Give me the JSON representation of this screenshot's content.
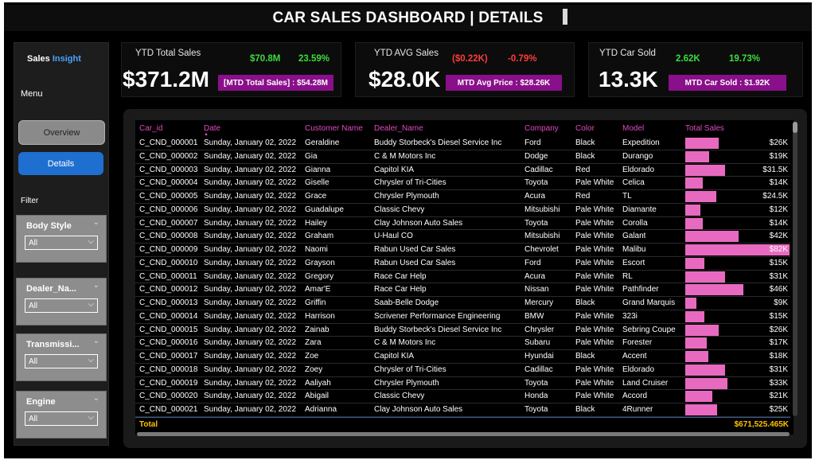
{
  "header": {
    "title": "CAR SALES DASHBOARD | DETAILS"
  },
  "sidebar": {
    "brand_prefix": "Sales",
    "brand_accent": "Insight",
    "menu_label": "Menu",
    "nav": {
      "overview": "Overview",
      "details": "Details"
    },
    "filter_label": "Filter",
    "slicers": [
      {
        "title": "Body Style",
        "value": "All"
      },
      {
        "title": "Dealer_Na...",
        "value": "All"
      },
      {
        "title": "Transmissi...",
        "value": "All"
      },
      {
        "title": "Engine",
        "value": "All"
      }
    ]
  },
  "cards": [
    {
      "label": "YTD Total Sales",
      "value": "$371.2M",
      "metric1": "$70.8M",
      "metric2": "23.59%",
      "metric1_color": "#3ddc3d",
      "metric2_color": "#3ddc3d",
      "mtd": "[MTD Total Sales] : $54.28M"
    },
    {
      "label": "YTD AVG Sales",
      "value": "$28.0K",
      "metric1": "($0.22K)",
      "metric2": "-0.79%",
      "metric1_color": "#ff3b3b",
      "metric2_color": "#ff3b3b",
      "mtd": "MTD Avg Price : $28.26K"
    },
    {
      "label": "YTD Car Sold",
      "value": "13.3K",
      "metric1": "2.62K",
      "metric2": "19.73%",
      "metric1_color": "#3ddc3d",
      "metric2_color": "#3ddc3d",
      "mtd": "MTD Car Sold : $1.92K"
    }
  ],
  "table": {
    "columns": [
      "Car_id",
      "Date",
      "Customer Name",
      "Dealer_Name",
      "Company",
      "Color",
      "Model",
      "Total Sales"
    ],
    "sort_indicator": "▲",
    "bar_color": "#e86ac0",
    "max_sales": 82,
    "rows": [
      {
        "car_id": "C_CND_000001",
        "date": "Sunday, January 02, 2022",
        "customer": "Geraldine",
        "dealer": "Buddy Storbeck's Diesel Service Inc",
        "company": "Ford",
        "color": "Black",
        "model": "Expedition",
        "total": "$26K",
        "value": 26
      },
      {
        "car_id": "C_CND_000002",
        "date": "Sunday, January 02, 2022",
        "customer": "Gia",
        "dealer": "C & M Motors Inc",
        "company": "Dodge",
        "color": "Black",
        "model": "Durango",
        "total": "$19K",
        "value": 19
      },
      {
        "car_id": "C_CND_000003",
        "date": "Sunday, January 02, 2022",
        "customer": "Gianna",
        "dealer": "Capitol KIA",
        "company": "Cadillac",
        "color": "Red",
        "model": "Eldorado",
        "total": "$31.5K",
        "value": 31.5
      },
      {
        "car_id": "C_CND_000004",
        "date": "Sunday, January 02, 2022",
        "customer": "Giselle",
        "dealer": "Chrysler of Tri-Cities",
        "company": "Toyota",
        "color": "Pale White",
        "model": "Celica",
        "total": "$14K",
        "value": 14
      },
      {
        "car_id": "C_CND_000005",
        "date": "Sunday, January 02, 2022",
        "customer": "Grace",
        "dealer": "Chrysler Plymouth",
        "company": "Acura",
        "color": "Red",
        "model": "TL",
        "total": "$24.5K",
        "value": 24.5
      },
      {
        "car_id": "C_CND_000006",
        "date": "Sunday, January 02, 2022",
        "customer": "Guadalupe",
        "dealer": "Classic Chevy",
        "company": "Mitsubishi",
        "color": "Pale White",
        "model": "Diamante",
        "total": "$12K",
        "value": 12
      },
      {
        "car_id": "C_CND_000007",
        "date": "Sunday, January 02, 2022",
        "customer": "Hailey",
        "dealer": "Clay Johnson Auto Sales",
        "company": "Toyota",
        "color": "Pale White",
        "model": "Corolla",
        "total": "$14K",
        "value": 14
      },
      {
        "car_id": "C_CND_000008",
        "date": "Sunday, January 02, 2022",
        "customer": "Graham",
        "dealer": "U-Haul CO",
        "company": "Mitsubishi",
        "color": "Pale White",
        "model": "Galant",
        "total": "$42K",
        "value": 42
      },
      {
        "car_id": "C_CND_000009",
        "date": "Sunday, January 02, 2022",
        "customer": "Naomi",
        "dealer": "Rabun Used Car Sales",
        "company": "Chevrolet",
        "color": "Pale White",
        "model": "Malibu",
        "total": "$82K",
        "value": 82
      },
      {
        "car_id": "C_CND_000010",
        "date": "Sunday, January 02, 2022",
        "customer": "Grayson",
        "dealer": "Rabun Used Car Sales",
        "company": "Ford",
        "color": "Pale White",
        "model": "Escort",
        "total": "$15K",
        "value": 15
      },
      {
        "car_id": "C_CND_000011",
        "date": "Sunday, January 02, 2022",
        "customer": "Gregory",
        "dealer": "Race Car Help",
        "company": "Acura",
        "color": "Pale White",
        "model": "RL",
        "total": "$31K",
        "value": 31
      },
      {
        "car_id": "C_CND_000012",
        "date": "Sunday, January 02, 2022",
        "customer": "Amar'E",
        "dealer": "Race Car Help",
        "company": "Nissan",
        "color": "Pale White",
        "model": "Pathfinder",
        "total": "$46K",
        "value": 46
      },
      {
        "car_id": "C_CND_000013",
        "date": "Sunday, January 02, 2022",
        "customer": "Griffin",
        "dealer": "Saab-Belle Dodge",
        "company": "Mercury",
        "color": "Black",
        "model": "Grand Marquis",
        "total": "$9K",
        "value": 9
      },
      {
        "car_id": "C_CND_000014",
        "date": "Sunday, January 02, 2022",
        "customer": "Harrison",
        "dealer": "Scrivener Performance Engineering",
        "company": "BMW",
        "color": "Pale White",
        "model": "323i",
        "total": "$15K",
        "value": 15
      },
      {
        "car_id": "C_CND_000015",
        "date": "Sunday, January 02, 2022",
        "customer": "Zainab",
        "dealer": "Buddy Storbeck's Diesel Service Inc",
        "company": "Chrysler",
        "color": "Pale White",
        "model": "Sebring Coupe",
        "total": "$26K",
        "value": 26
      },
      {
        "car_id": "C_CND_000016",
        "date": "Sunday, January 02, 2022",
        "customer": "Zara",
        "dealer": "C & M Motors Inc",
        "company": "Subaru",
        "color": "Pale White",
        "model": "Forester",
        "total": "$17K",
        "value": 17
      },
      {
        "car_id": "C_CND_000017",
        "date": "Sunday, January 02, 2022",
        "customer": "Zoe",
        "dealer": "Capitol KIA",
        "company": "Hyundai",
        "color": "Black",
        "model": "Accent",
        "total": "$18K",
        "value": 18
      },
      {
        "car_id": "C_CND_000018",
        "date": "Sunday, January 02, 2022",
        "customer": "Zoey",
        "dealer": "Chrysler of Tri-Cities",
        "company": "Cadillac",
        "color": "Pale White",
        "model": "Eldorado",
        "total": "$31K",
        "value": 31
      },
      {
        "car_id": "C_CND_000019",
        "date": "Sunday, January 02, 2022",
        "customer": "Aaliyah",
        "dealer": "Chrysler Plymouth",
        "company": "Toyota",
        "color": "Pale White",
        "model": "Land Cruiser",
        "total": "$33K",
        "value": 33
      },
      {
        "car_id": "C_CND_000020",
        "date": "Sunday, January 02, 2022",
        "customer": "Abigail",
        "dealer": "Classic Chevy",
        "company": "Honda",
        "color": "Pale White",
        "model": "Accord",
        "total": "$21K",
        "value": 21
      },
      {
        "car_id": "C_CND_000021",
        "date": "Sunday, January 02, 2022",
        "customer": "Adrianna",
        "dealer": "Clay Johnson Auto Sales",
        "company": "Toyota",
        "color": "Black",
        "model": "4Runner",
        "total": "$25K",
        "value": 25
      }
    ],
    "total_label": "Total",
    "total_value": "$671,525.465K"
  }
}
